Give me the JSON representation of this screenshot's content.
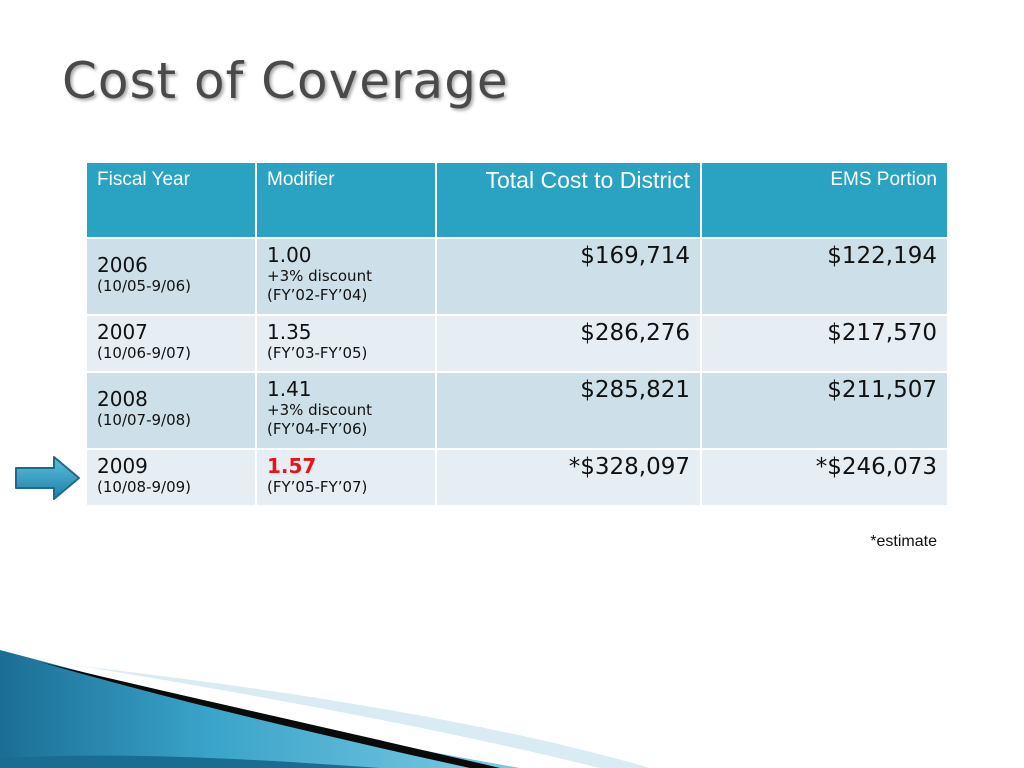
{
  "slide": {
    "title": "Cost of Coverage",
    "footnote": "*estimate"
  },
  "table": {
    "headers": [
      "Fiscal Year",
      "Modifier",
      "Total Cost to District",
      "EMS Portion"
    ],
    "rows": [
      {
        "year": "2006",
        "period": "(10/05-9/06)",
        "modifier": "1.00",
        "discount": "+3% discount",
        "range": "(FY’02-FY’04)",
        "total": "$169,714",
        "ems": "$122,194"
      },
      {
        "year": "2007",
        "period": "(10/06-9/07)",
        "modifier": "1.35",
        "discount": "",
        "range": "(FY’03-FY’05)",
        "total": "$286,276",
        "ems": "$217,570"
      },
      {
        "year": "2008",
        "period": "(10/07-9/08)",
        "modifier": "1.41",
        "discount": "+3% discount",
        "range": "(FY’04-FY’06)",
        "total": "$285,821",
        "ems": "$211,507"
      },
      {
        "year": "2009",
        "period": "(10/08-9/09)",
        "modifier": "1.57",
        "discount": "",
        "range": "(FY’05-FY’07)",
        "total": "*$328,097",
        "ems": "*$246,073"
      }
    ]
  },
  "colors": {
    "header_bg": "#2aa2c1",
    "row_dark": "#cddfe8",
    "row_light": "#e7eef3",
    "highlight_modifier": "#e8121b",
    "arrow": "#2e93bd"
  },
  "icons": {
    "pointer": "right-arrow-icon",
    "decoration": "blue-wave-decoration"
  }
}
